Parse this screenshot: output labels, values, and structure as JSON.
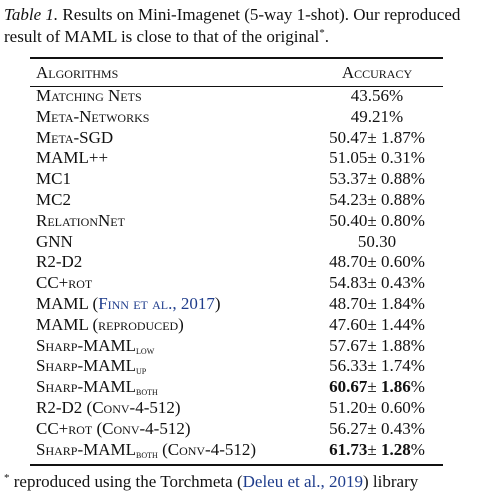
{
  "caption": {
    "label": "Table 1.",
    "text": " Results on Mini-Imagenet (5-way 1-shot). Our reproduced result of MAML is close to that of the original",
    "mark": "*"
  },
  "table": {
    "headers": [
      "Algorithms",
      "Accuracy"
    ],
    "rows": [
      {
        "name": "Matching Nets",
        "value": "43.56%"
      },
      {
        "name": "Meta-Networks",
        "value": "49.21%"
      },
      {
        "name": "Meta-SGD",
        "mean": "50.47",
        "pm": "± ",
        "err": "1.87",
        "pct": "%"
      },
      {
        "name": "MAML++",
        "mean": "51.05",
        "pm": "± ",
        "err": "0.31",
        "pct": "%"
      },
      {
        "name": "MC1",
        "mean": "53.37",
        "pm": "± ",
        "err": "0.88",
        "pct": "%"
      },
      {
        "name": "MC2",
        "mean": "54.23",
        "pm": "± ",
        "err": "0.88",
        "pct": "%"
      },
      {
        "name": "RelationNet",
        "mean": "50.40",
        "pm": "± ",
        "err": "0.80",
        "pct": "%"
      },
      {
        "name": "GNN",
        "value": "50.30"
      },
      {
        "name": "R2-D2",
        "mean": "48.70",
        "pm": "± ",
        "err": "0.60",
        "pct": "%"
      },
      {
        "name": "CC+rot",
        "mean": "54.83",
        "pm": "± ",
        "err": "0.43",
        "pct": "%"
      },
      {
        "name": "MAML",
        "open": " (",
        "cite": "Finn et al., 2017",
        "close": ")",
        "mean": "48.70",
        "pm": "± ",
        "err": "1.84",
        "pct": "%"
      },
      {
        "name": "MAML",
        "suffix": " (reproduced)",
        "mean": "47.60",
        "pm": "± ",
        "err": "1.44",
        "pct": "%"
      },
      {
        "name": "Sharp-MAML",
        "sub": "low",
        "mean": "57.67",
        "pm": "± ",
        "err": "1.88",
        "pct": "%"
      },
      {
        "name": "Sharp-MAML",
        "sub": "up",
        "mean": "56.33",
        "pm": "± ",
        "err": "1.74",
        "pct": "%"
      },
      {
        "name": "Sharp-MAML",
        "sub": "both",
        "mean": "60.67",
        "pm": "± ",
        "err": "1.86",
        "pct": "%"
      },
      {
        "name": "R2-D2",
        "suffix": " (Conv-4-512)",
        "mean": "51.20",
        "pm": "± ",
        "err": "0.60",
        "pct": "%"
      },
      {
        "name": "CC+rot",
        "suffix": " (Conv-4-512)",
        "mean": "56.27",
        "pm": "± ",
        "err": "0.43",
        "pct": "%"
      },
      {
        "name": "Sharp-MAML",
        "sub": "both",
        "suffix": " (Conv-4-512)",
        "mean": "61.73",
        "pm": "± ",
        "err": "1.28",
        "pct": "%"
      }
    ]
  },
  "footnote": {
    "mark": "*",
    "before": " reproduced using the Torchmeta (",
    "cite": "Deleu et al., 2019",
    "after": ") library"
  },
  "colors": {
    "citation": "#1f3d8c",
    "text": "#111111"
  }
}
